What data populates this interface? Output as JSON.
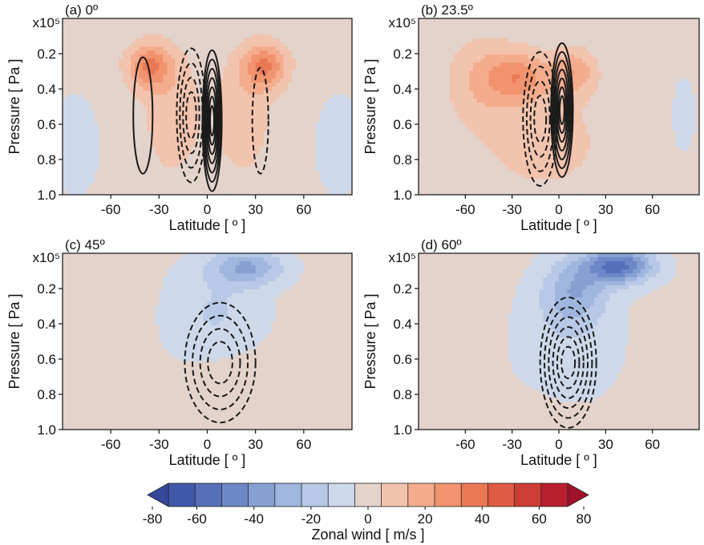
{
  "chart_data": [
    {
      "type": "heatmap",
      "title": "(a) 0º",
      "xlabel": "Latitude [ º ]",
      "ylabel": "Pressure [ Pa ]",
      "y_multiplier": "x10⁵",
      "xlim": [
        -90,
        90
      ],
      "ylim": [
        1.0,
        0.0
      ],
      "xticks": [
        -60,
        -30,
        0,
        30,
        60
      ],
      "yticks": [
        0.2,
        0.4,
        0.6,
        0.8,
        1.0
      ],
      "wind_features": [
        {
          "lat": -36,
          "p": 0.27,
          "u": 36,
          "wlat": 14,
          "wp": 0.13
        },
        {
          "lat": 36,
          "p": 0.27,
          "u": 36,
          "wlat": 14,
          "wp": 0.13
        },
        {
          "lat": -22,
          "p": 0.55,
          "u": 14,
          "wlat": 18,
          "wp": 0.35
        },
        {
          "lat": 22,
          "p": 0.55,
          "u": 14,
          "wlat": 18,
          "wp": 0.35
        },
        {
          "lat": -82,
          "p": 0.72,
          "u": -6,
          "wlat": 18,
          "wp": 0.35
        },
        {
          "lat": 82,
          "p": 0.72,
          "u": -6,
          "wlat": 18,
          "wp": 0.35
        }
      ],
      "streamfunction_cells": [
        {
          "lat": -10,
          "p": 0.55,
          "wlat": 9,
          "wp": 0.38,
          "sign": "negative",
          "levels": 4
        },
        {
          "lat": 3,
          "p": 0.58,
          "wlat": 6,
          "wp": 0.4,
          "sign": "positive",
          "levels": 7
        },
        {
          "lat": -40,
          "p": 0.55,
          "wlat": 6,
          "wp": 0.33,
          "sign": "positive",
          "levels": 1
        },
        {
          "lat": 33,
          "p": 0.58,
          "wlat": 5,
          "wp": 0.3,
          "sign": "negative",
          "levels": 1
        }
      ]
    },
    {
      "type": "heatmap",
      "title": "(b) 23.5º",
      "xlabel": "Latitude [ º ]",
      "ylabel": "Pressure [ Pa ]",
      "y_multiplier": "x10⁵",
      "xlim": [
        -90,
        90
      ],
      "ylim": [
        1.0,
        0.0
      ],
      "xticks": [
        -60,
        -30,
        0,
        30,
        60
      ],
      "yticks": [
        0.2,
        0.4,
        0.6,
        0.8,
        1.0
      ],
      "wind_features": [
        {
          "lat": -25,
          "p": 0.33,
          "u": 30,
          "wlat": 20,
          "wp": 0.14
        },
        {
          "lat": 10,
          "p": 0.3,
          "u": 24,
          "wlat": 14,
          "wp": 0.13
        },
        {
          "lat": -50,
          "p": 0.35,
          "u": 16,
          "wlat": 22,
          "wp": 0.25
        },
        {
          "lat": -10,
          "p": 0.7,
          "u": 12,
          "wlat": 40,
          "wp": 0.3
        },
        {
          "lat": 80,
          "p": 0.55,
          "u": -4,
          "wlat": 14,
          "wp": 0.4
        }
      ],
      "streamfunction_cells": [
        {
          "lat": -12,
          "p": 0.57,
          "wlat": 11,
          "wp": 0.38,
          "sign": "negative",
          "levels": 4
        },
        {
          "lat": 2,
          "p": 0.52,
          "wlat": 7,
          "wp": 0.38,
          "sign": "positive",
          "levels": 7
        }
      ]
    },
    {
      "type": "heatmap",
      "title": "(c) 45º",
      "xlabel": "Latitude [ º ]",
      "ylabel": "Pressure [ Pa ]",
      "y_multiplier": "x10⁵",
      "xlim": [
        -90,
        90
      ],
      "ylim": [
        1.0,
        0.0
      ],
      "xticks": [
        -60,
        -30,
        0,
        30,
        60
      ],
      "yticks": [
        0.2,
        0.4,
        0.6,
        0.8,
        1.0
      ],
      "wind_features": [
        {
          "lat": 25,
          "p": 0.08,
          "u": -32,
          "wlat": 22,
          "wp": 0.1
        },
        {
          "lat": 5,
          "p": 0.35,
          "u": -14,
          "wlat": 30,
          "wp": 0.3
        },
        {
          "lat": 15,
          "p": 0.8,
          "u": 8,
          "wlat": 25,
          "wp": 0.25
        },
        {
          "lat": -70,
          "p": 0.55,
          "u": 5,
          "wlat": 20,
          "wp": 0.6
        }
      ],
      "streamfunction_cells": [
        {
          "lat": 8,
          "p": 0.62,
          "wlat": 22,
          "wp": 0.34,
          "sign": "negative",
          "levels": 4
        }
      ]
    },
    {
      "type": "heatmap",
      "title": "(d) 60º",
      "xlabel": "Latitude [ º ]",
      "ylabel": "Pressure [ Pa ]",
      "y_multiplier": "x10⁵",
      "xlim": [
        -90,
        90
      ],
      "ylim": [
        1.0,
        0.0
      ],
      "xticks": [
        -60,
        -30,
        0,
        30,
        60
      ],
      "yticks": [
        0.2,
        0.4,
        0.6,
        0.8,
        1.0
      ],
      "wind_features": [
        {
          "lat": 38,
          "p": 0.07,
          "u": -56,
          "wlat": 22,
          "wp": 0.1
        },
        {
          "lat": 10,
          "p": 0.22,
          "u": -28,
          "wlat": 20,
          "wp": 0.18
        },
        {
          "lat": 5,
          "p": 0.5,
          "u": -10,
          "wlat": 35,
          "wp": 0.35
        },
        {
          "lat": -40,
          "p": 0.9,
          "u": 4,
          "wlat": 40,
          "wp": 0.12
        }
      ],
      "streamfunction_cells": [
        {
          "lat": 6,
          "p": 0.62,
          "wlat": 18,
          "wp": 0.37,
          "sign": "negative",
          "levels": 6
        }
      ]
    }
  ],
  "colorbar": {
    "label": "Zonal wind [ m/s ]",
    "min": -80,
    "max": 80,
    "step": 10,
    "ticks": [
      -80,
      -60,
      -40,
      -20,
      0,
      20,
      40,
      60,
      80
    ],
    "colors": [
      "#3f58a9",
      "#5570b8",
      "#6d88c6",
      "#86a0d2",
      "#9fb6de",
      "#b7c9e6",
      "#cdd8ea",
      "#e3d3cb",
      "#f2c3ad",
      "#f4ac8c",
      "#f1936e",
      "#eb7855",
      "#de5b44",
      "#cd3d36",
      "#b9202f"
    ]
  }
}
